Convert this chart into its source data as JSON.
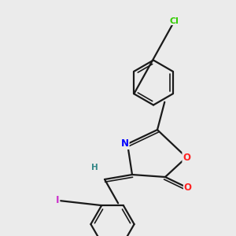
{
  "background_color": "#ebebeb",
  "bond_color": "#1a1a1a",
  "atom_colors": {
    "N": "#0000ff",
    "O": "#ff2222",
    "Cl": "#33cc00",
    "I": "#cc33cc",
    "H": "#338888",
    "C": "#1a1a1a"
  },
  "figsize": [
    3.0,
    3.0
  ],
  "dpi": 100
}
